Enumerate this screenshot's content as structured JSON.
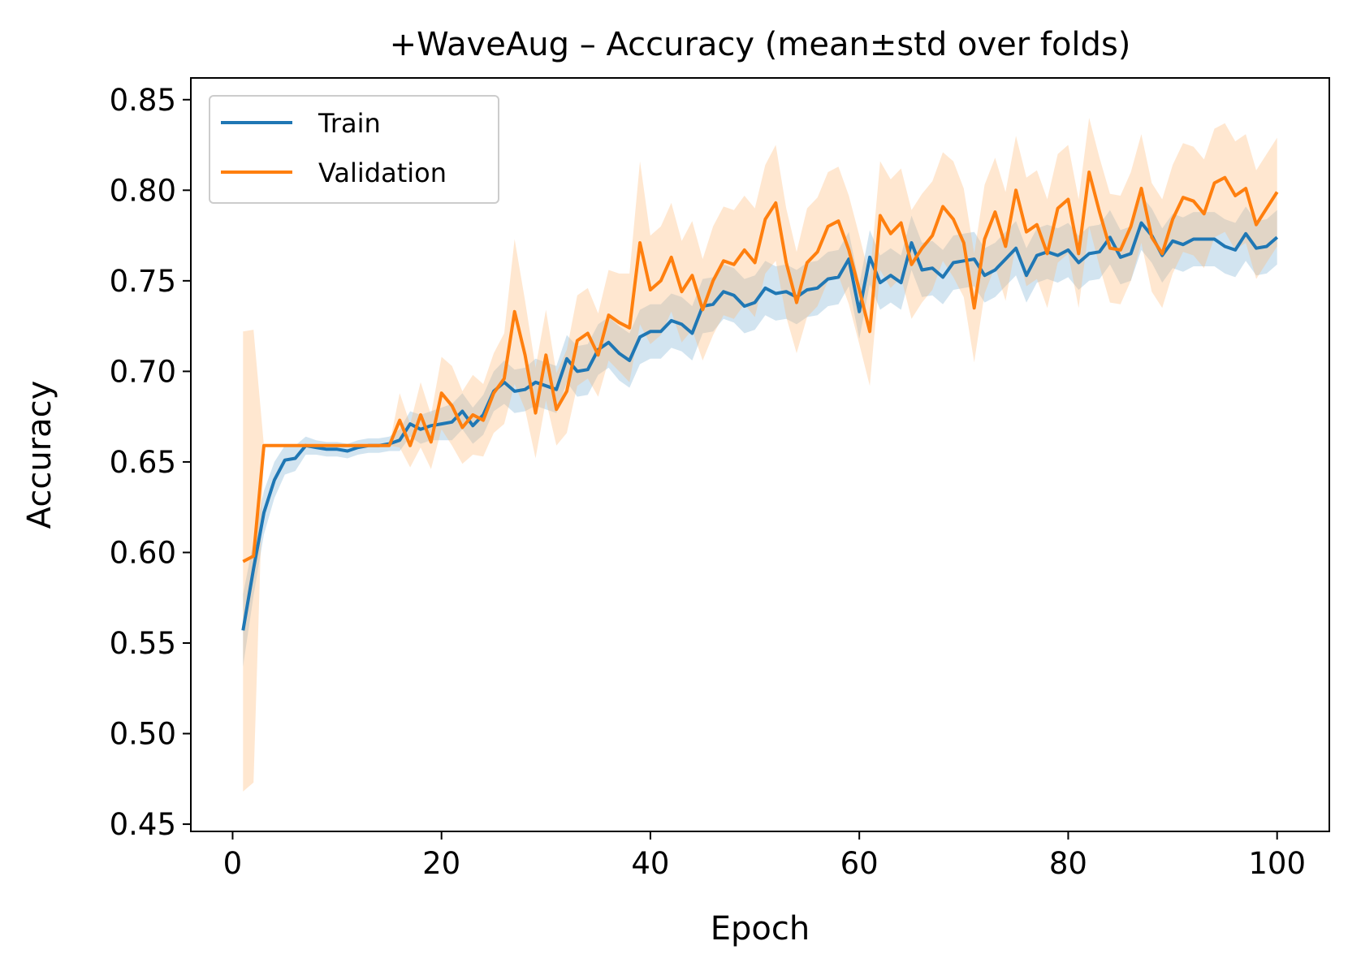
{
  "chart_data": {
    "type": "line",
    "title": "+WaveAug – Accuracy (mean±std over folds)",
    "xlabel": "Epoch",
    "ylabel": "Accuracy",
    "xlim": [
      -4,
      105
    ],
    "ylim": [
      0.446,
      0.862
    ],
    "xticks": [
      0,
      20,
      40,
      60,
      80,
      100
    ],
    "xtick_labels": [
      "0",
      "20",
      "40",
      "60",
      "80",
      "100"
    ],
    "yticks": [
      0.45,
      0.5,
      0.55,
      0.6,
      0.65,
      0.7,
      0.75,
      0.8,
      0.85
    ],
    "ytick_labels": [
      "0.45",
      "0.50",
      "0.55",
      "0.60",
      "0.65",
      "0.70",
      "0.75",
      "0.80",
      "0.85"
    ],
    "legend_position": "top-left",
    "x": [
      1,
      2,
      3,
      4,
      5,
      6,
      7,
      8,
      9,
      10,
      11,
      12,
      13,
      14,
      15,
      16,
      17,
      18,
      19,
      20,
      21,
      22,
      23,
      24,
      25,
      26,
      27,
      28,
      29,
      30,
      31,
      32,
      33,
      34,
      35,
      36,
      37,
      38,
      39,
      40,
      41,
      42,
      43,
      44,
      45,
      46,
      47,
      48,
      49,
      50,
      51,
      52,
      53,
      54,
      55,
      56,
      57,
      58,
      59,
      60,
      61,
      62,
      63,
      64,
      65,
      66,
      67,
      68,
      69,
      70,
      71,
      72,
      73,
      74,
      75,
      76,
      77,
      78,
      79,
      80,
      81,
      82,
      83,
      84,
      85,
      86,
      87,
      88,
      89,
      90,
      91,
      92,
      93,
      94,
      95,
      96,
      97,
      98,
      99,
      100
    ],
    "series": [
      {
        "name": "Train",
        "color": "#1f77b4",
        "band_color": "#1f77b4",
        "values": [
          0.557,
          0.591,
          0.622,
          0.64,
          0.651,
          0.652,
          0.659,
          0.658,
          0.657,
          0.657,
          0.656,
          0.658,
          0.659,
          0.659,
          0.66,
          0.662,
          0.671,
          0.668,
          0.67,
          0.671,
          0.672,
          0.678,
          0.67,
          0.676,
          0.689,
          0.694,
          0.689,
          0.69,
          0.694,
          0.692,
          0.69,
          0.707,
          0.7,
          0.701,
          0.712,
          0.716,
          0.71,
          0.706,
          0.719,
          0.722,
          0.722,
          0.728,
          0.726,
          0.721,
          0.736,
          0.737,
          0.744,
          0.742,
          0.736,
          0.738,
          0.746,
          0.743,
          0.744,
          0.741,
          0.745,
          0.746,
          0.751,
          0.752,
          0.762,
          0.733,
          0.763,
          0.749,
          0.753,
          0.749,
          0.771,
          0.756,
          0.757,
          0.752,
          0.76,
          0.761,
          0.762,
          0.753,
          0.756,
          0.762,
          0.768,
          0.753,
          0.764,
          0.766,
          0.764,
          0.767,
          0.76,
          0.765,
          0.766,
          0.774,
          0.763,
          0.765,
          0.782,
          0.775,
          0.764,
          0.772,
          0.77,
          0.773,
          0.773,
          0.773,
          0.769,
          0.767,
          0.776,
          0.768,
          0.769,
          0.774
        ],
        "std": [
          0.02,
          0.015,
          0.012,
          0.01,
          0.008,
          0.007,
          0.005,
          0.004,
          0.004,
          0.004,
          0.004,
          0.004,
          0.004,
          0.004,
          0.004,
          0.006,
          0.007,
          0.008,
          0.008,
          0.009,
          0.01,
          0.01,
          0.01,
          0.011,
          0.011,
          0.012,
          0.012,
          0.012,
          0.013,
          0.013,
          0.013,
          0.013,
          0.014,
          0.014,
          0.014,
          0.014,
          0.015,
          0.015,
          0.015,
          0.015,
          0.015,
          0.015,
          0.015,
          0.015,
          0.015,
          0.015,
          0.015,
          0.015,
          0.015,
          0.015,
          0.015,
          0.015,
          0.015,
          0.015,
          0.015,
          0.015,
          0.015,
          0.015,
          0.015,
          0.015,
          0.015,
          0.015,
          0.015,
          0.015,
          0.015,
          0.015,
          0.015,
          0.015,
          0.015,
          0.015,
          0.015,
          0.015,
          0.015,
          0.015,
          0.015,
          0.015,
          0.015,
          0.015,
          0.015,
          0.015,
          0.015,
          0.015,
          0.015,
          0.015,
          0.015,
          0.015,
          0.015,
          0.015,
          0.015,
          0.015,
          0.015,
          0.015,
          0.015,
          0.015,
          0.015,
          0.015,
          0.015,
          0.015,
          0.015,
          0.015
        ]
      },
      {
        "name": "Validation",
        "color": "#ff7f0e",
        "band_color": "#ffbb78",
        "values": [
          0.595,
          0.598,
          0.659,
          0.659,
          0.659,
          0.659,
          0.659,
          0.659,
          0.659,
          0.659,
          0.659,
          0.659,
          0.659,
          0.659,
          0.659,
          0.673,
          0.659,
          0.676,
          0.661,
          0.688,
          0.681,
          0.669,
          0.676,
          0.673,
          0.688,
          0.696,
          0.733,
          0.709,
          0.677,
          0.709,
          0.679,
          0.689,
          0.717,
          0.721,
          0.709,
          0.731,
          0.727,
          0.724,
          0.771,
          0.745,
          0.75,
          0.763,
          0.744,
          0.753,
          0.734,
          0.75,
          0.761,
          0.759,
          0.767,
          0.76,
          0.784,
          0.793,
          0.76,
          0.738,
          0.76,
          0.766,
          0.78,
          0.783,
          0.767,
          0.745,
          0.722,
          0.786,
          0.776,
          0.782,
          0.759,
          0.768,
          0.775,
          0.791,
          0.784,
          0.771,
          0.735,
          0.773,
          0.788,
          0.769,
          0.8,
          0.777,
          0.781,
          0.765,
          0.79,
          0.795,
          0.765,
          0.81,
          0.788,
          0.768,
          0.767,
          0.78,
          0.801,
          0.774,
          0.765,
          0.784,
          0.796,
          0.794,
          0.787,
          0.804,
          0.807,
          0.797,
          0.801,
          0.781,
          0.79,
          0.799
        ],
        "std": [
          0.127,
          0.125,
          0.0,
          0.0,
          0.0,
          0.0,
          0.0,
          0.0,
          0.0,
          0.0,
          0.0,
          0.0,
          0.0,
          0.0,
          0.0,
          0.015,
          0.012,
          0.018,
          0.015,
          0.02,
          0.022,
          0.02,
          0.022,
          0.02,
          0.022,
          0.025,
          0.04,
          0.03,
          0.025,
          0.025,
          0.02,
          0.023,
          0.025,
          0.025,
          0.023,
          0.025,
          0.027,
          0.03,
          0.045,
          0.03,
          0.03,
          0.03,
          0.028,
          0.03,
          0.028,
          0.03,
          0.03,
          0.03,
          0.03,
          0.03,
          0.03,
          0.032,
          0.03,
          0.028,
          0.03,
          0.03,
          0.03,
          0.03,
          0.03,
          0.03,
          0.03,
          0.03,
          0.03,
          0.03,
          0.03,
          0.03,
          0.03,
          0.03,
          0.032,
          0.03,
          0.03,
          0.03,
          0.03,
          0.03,
          0.03,
          0.03,
          0.03,
          0.03,
          0.03,
          0.03,
          0.03,
          0.03,
          0.03,
          0.03,
          0.03,
          0.03,
          0.03,
          0.03,
          0.03,
          0.03,
          0.03,
          0.03,
          0.03,
          0.03,
          0.03,
          0.03,
          0.03,
          0.03,
          0.03,
          0.03
        ]
      }
    ]
  }
}
